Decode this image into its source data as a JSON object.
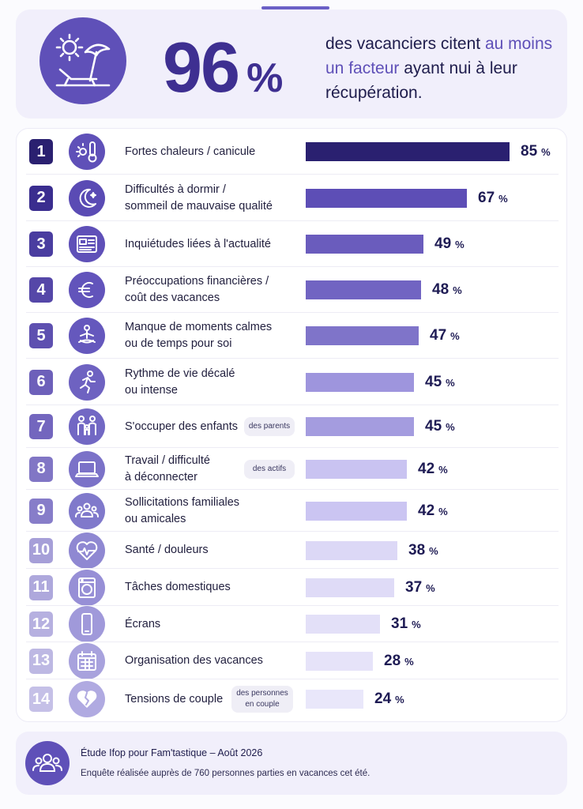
{
  "hero": {
    "percent": "96",
    "percent_symbol": "%",
    "text_part1": "des vacanciers citent ",
    "text_highlight": "au moins un facteur",
    "text_part2": " ayant nui à leur récupération."
  },
  "chart_data": {
    "type": "bar",
    "orientation": "horizontal",
    "unit": "%",
    "categories": [
      "Fortes chaleurs / canicule",
      "Difficultés à dormir / sommeil de mauvaise qualité",
      "Inquiétudes liées à l'actualité",
      "Préoccupations financières / coût des vacances",
      "Manque de moments calmes ou de temps pour soi",
      "Rythme de vie décalé ou intense",
      "S'occuper des enfants",
      "Travail / difficulté à déconnecter",
      "Sollicitations familiales ou amicales",
      "Santé / douleurs",
      "Tâches domestiques",
      "Écrans",
      "Organisation des vacances",
      "Tensions de couple"
    ],
    "values": [
      85,
      67,
      49,
      48,
      47,
      45,
      45,
      42,
      42,
      38,
      37,
      31,
      28,
      24
    ],
    "xlim": [
      0,
      100
    ],
    "bar_colors": [
      "#2a2070",
      "#5d4eb6",
      "#6a5cbd",
      "#7164c2",
      "#7f74c9",
      "#9e95dd",
      "#a49cdf",
      "#c9c3f1",
      "#cbc5f2",
      "#dcd8f6",
      "#dfdbf7",
      "#e3e0f8",
      "#e6e3f9",
      "#e9e7fa"
    ],
    "rank_colors": [
      "#2a2070",
      "#3a2d8f",
      "#4a3da0",
      "#5547a8",
      "#5e50b0",
      "#6d60ba",
      "#7366be",
      "#8176c5",
      "#877dc9",
      "#a69fd8",
      "#aea8dc",
      "#b6b0e0",
      "#bdb8e3",
      "#c5c0e7"
    ],
    "icon_bg": [
      "#5f50b8",
      "#5a4bb4",
      "#5f50b8",
      "#6254bb",
      "#6558bd",
      "#6e62c1",
      "#7268c4",
      "#7b72c8",
      "#8079cb",
      "#8f88d2",
      "#978fd6",
      "#a099da",
      "#a8a2dd",
      "#b0aae1"
    ]
  },
  "rows": [
    {
      "rank": "1",
      "icon": "thermometer-sun-icon",
      "line1": "Fortes chaleurs / canicule",
      "line2": "",
      "tag": "",
      "value": "85",
      "pct": "%"
    },
    {
      "rank": "2",
      "icon": "moon-icon",
      "line1": "Difficultés à dormir /",
      "line2": "sommeil de mauvaise qualité",
      "tag": "",
      "value": "67",
      "pct": "%"
    },
    {
      "rank": "3",
      "icon": "newspaper-icon",
      "line1": "Inquiétudes liées à l'actualité",
      "line2": "",
      "tag": "",
      "value": "49",
      "pct": "%"
    },
    {
      "rank": "4",
      "icon": "euro-icon",
      "line1": "Préoccupations financières /",
      "line2": "coût des vacances",
      "tag": "",
      "value": "48",
      "pct": "%"
    },
    {
      "rank": "5",
      "icon": "meditation-icon",
      "line1": "Manque de moments calmes",
      "line2": "ou de temps pour soi",
      "tag": "",
      "value": "47",
      "pct": "%"
    },
    {
      "rank": "6",
      "icon": "running-icon",
      "line1": "Rythme de vie décalé",
      "line2": "ou intense",
      "tag": "",
      "value": "45",
      "pct": "%"
    },
    {
      "rank": "7",
      "icon": "family-icon",
      "line1": "S'occuper des enfants",
      "line2": "",
      "tag": "des parents",
      "value": "45",
      "pct": "%"
    },
    {
      "rank": "8",
      "icon": "laptop-icon",
      "line1": "Travail / difficulté",
      "line2": "à déconnecter",
      "tag": "des actifs",
      "value": "42",
      "pct": "%"
    },
    {
      "rank": "9",
      "icon": "group-icon",
      "line1": "Sollicitations familiales",
      "line2": "ou amicales",
      "tag": "",
      "value": "42",
      "pct": "%"
    },
    {
      "rank": "10",
      "icon": "heart-pulse-icon",
      "line1": "Santé / douleurs",
      "line2": "",
      "tag": "",
      "value": "38",
      "pct": "%"
    },
    {
      "rank": "11",
      "icon": "washing-machine-icon",
      "line1": "Tâches domestiques",
      "line2": "",
      "tag": "",
      "value": "37",
      "pct": "%"
    },
    {
      "rank": "12",
      "icon": "smartphone-icon",
      "line1": "Écrans",
      "line2": "",
      "tag": "",
      "value": "31",
      "pct": "%"
    },
    {
      "rank": "13",
      "icon": "calendar-icon",
      "line1": "Organisation des vacances",
      "line2": "",
      "tag": "",
      "value": "28",
      "pct": "%"
    },
    {
      "rank": "14",
      "icon": "broken-heart-icon",
      "line1": "Tensions de couple",
      "line2": "",
      "tag": "des personnes en couple",
      "value": "24",
      "pct": "%"
    }
  ],
  "footer": {
    "title": "Étude Ifop pour Fam'tastique – Août 2026",
    "subtitle": "Enquête réalisée auprès de 760 personnes parties en vacances cet été."
  }
}
